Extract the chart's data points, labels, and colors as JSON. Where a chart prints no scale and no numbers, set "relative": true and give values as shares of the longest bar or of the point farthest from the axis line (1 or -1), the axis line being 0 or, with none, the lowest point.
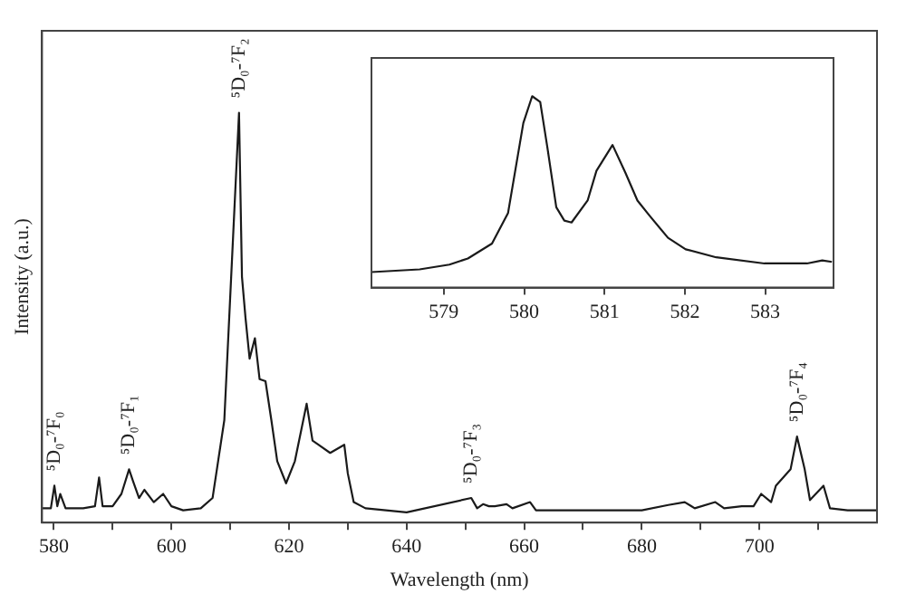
{
  "chart_data": [
    {
      "type": "line",
      "xlabel": "Wavelength (nm)",
      "ylabel": "Intensity (a.u.)",
      "relative": true,
      "color": "#1a1a1a",
      "marker": "none",
      "grid": false,
      "legend": false,
      "tick_labels": "x",
      "xlim": [
        578,
        720
      ],
      "xticks": [
        580,
        {
          "value": 590,
          "label": null
        },
        600,
        {
          "value": 610,
          "label": null
        },
        620,
        {
          "value": 630,
          "label": null
        },
        640,
        {
          "value": 650,
          "label": null
        },
        660,
        {
          "value": 670,
          "label": null
        },
        680,
        {
          "value": 690,
          "label": null
        },
        700,
        {
          "value": 710,
          "label": null
        }
      ],
      "x": [
        578,
        579.5,
        580.1,
        580.6,
        581.1,
        582,
        585,
        587,
        587.7,
        588.3,
        590,
        591.5,
        592.8,
        593.5,
        594.5,
        595.4,
        597,
        598.6,
        600,
        602,
        605,
        607,
        609,
        610.5,
        611.5,
        612,
        612.6,
        613.3,
        614.2,
        615,
        616,
        617,
        618,
        619.5,
        621,
        623,
        624,
        625,
        627,
        629.4,
        630,
        631,
        633,
        640,
        651,
        652,
        653,
        654,
        655,
        657,
        658,
        661,
        662,
        670,
        680,
        684.5,
        687.3,
        689,
        692.5,
        694,
        697,
        699,
        700.3,
        702,
        702.8,
        705.3,
        706.4,
        707.7,
        708.6,
        710.9,
        712,
        715,
        720
      ],
      "values": [
        0.035,
        0.035,
        0.09,
        0.04,
        0.07,
        0.035,
        0.035,
        0.04,
        0.11,
        0.04,
        0.04,
        0.07,
        0.13,
        0.1,
        0.06,
        0.08,
        0.05,
        0.07,
        0.04,
        0.03,
        0.035,
        0.06,
        0.25,
        0.7,
        1.0,
        0.6,
        0.5,
        0.4,
        0.45,
        0.35,
        0.345,
        0.25,
        0.15,
        0.096,
        0.15,
        0.29,
        0.2,
        0.19,
        0.17,
        0.19,
        0.12,
        0.05,
        0.035,
        0.025,
        0.06,
        0.035,
        0.045,
        0.04,
        0.04,
        0.045,
        0.035,
        0.05,
        0.03,
        0.03,
        0.03,
        0.043,
        0.05,
        0.035,
        0.05,
        0.035,
        0.04,
        0.04,
        0.07,
        0.05,
        0.09,
        0.13,
        0.21,
        0.13,
        0.055,
        0.09,
        0.035,
        0.03,
        0.03
      ],
      "annotations": [
        {
          "text": "⁵D₀-⁷F₀",
          "x": 580.1,
          "y": 0.09
        },
        {
          "text": "⁵D₀-⁷F₁",
          "x": 592.8,
          "y": 0.13
        },
        {
          "text": "⁵D₀-⁷F₂",
          "x": 611.5,
          "y": 1.0
        },
        {
          "text": "⁵D₀-⁷F₃",
          "x": 651,
          "y": 0.06
        },
        {
          "text": "⁵D₀-⁷F₄",
          "x": 706.4,
          "y": 0.21
        }
      ]
    },
    {
      "type": "line",
      "relative": true,
      "color": "#1a1a1a",
      "marker": "none",
      "grid": false,
      "legend": false,
      "tick_labels": "x",
      "xlim": [
        578.1,
        583.85
      ],
      "xticks": [
        579,
        580,
        581,
        582,
        583
      ],
      "x": [
        578.1,
        578.7,
        579.07,
        579.3,
        579.6,
        579.8,
        579.99,
        580.1,
        580.2,
        580.29,
        580.4,
        580.5,
        580.59,
        580.79,
        580.9,
        581.1,
        581.26,
        581.41,
        581.56,
        581.79,
        582.01,
        582.39,
        582.99,
        583.52,
        583.71,
        583.83
      ],
      "values": [
        0.081,
        0.095,
        0.12,
        0.152,
        0.23,
        0.39,
        0.86,
        1.0,
        0.97,
        0.73,
        0.42,
        0.35,
        0.34,
        0.455,
        0.61,
        0.745,
        0.6,
        0.455,
        0.376,
        0.26,
        0.2,
        0.158,
        0.126,
        0.126,
        0.142,
        0.134
      ]
    }
  ]
}
